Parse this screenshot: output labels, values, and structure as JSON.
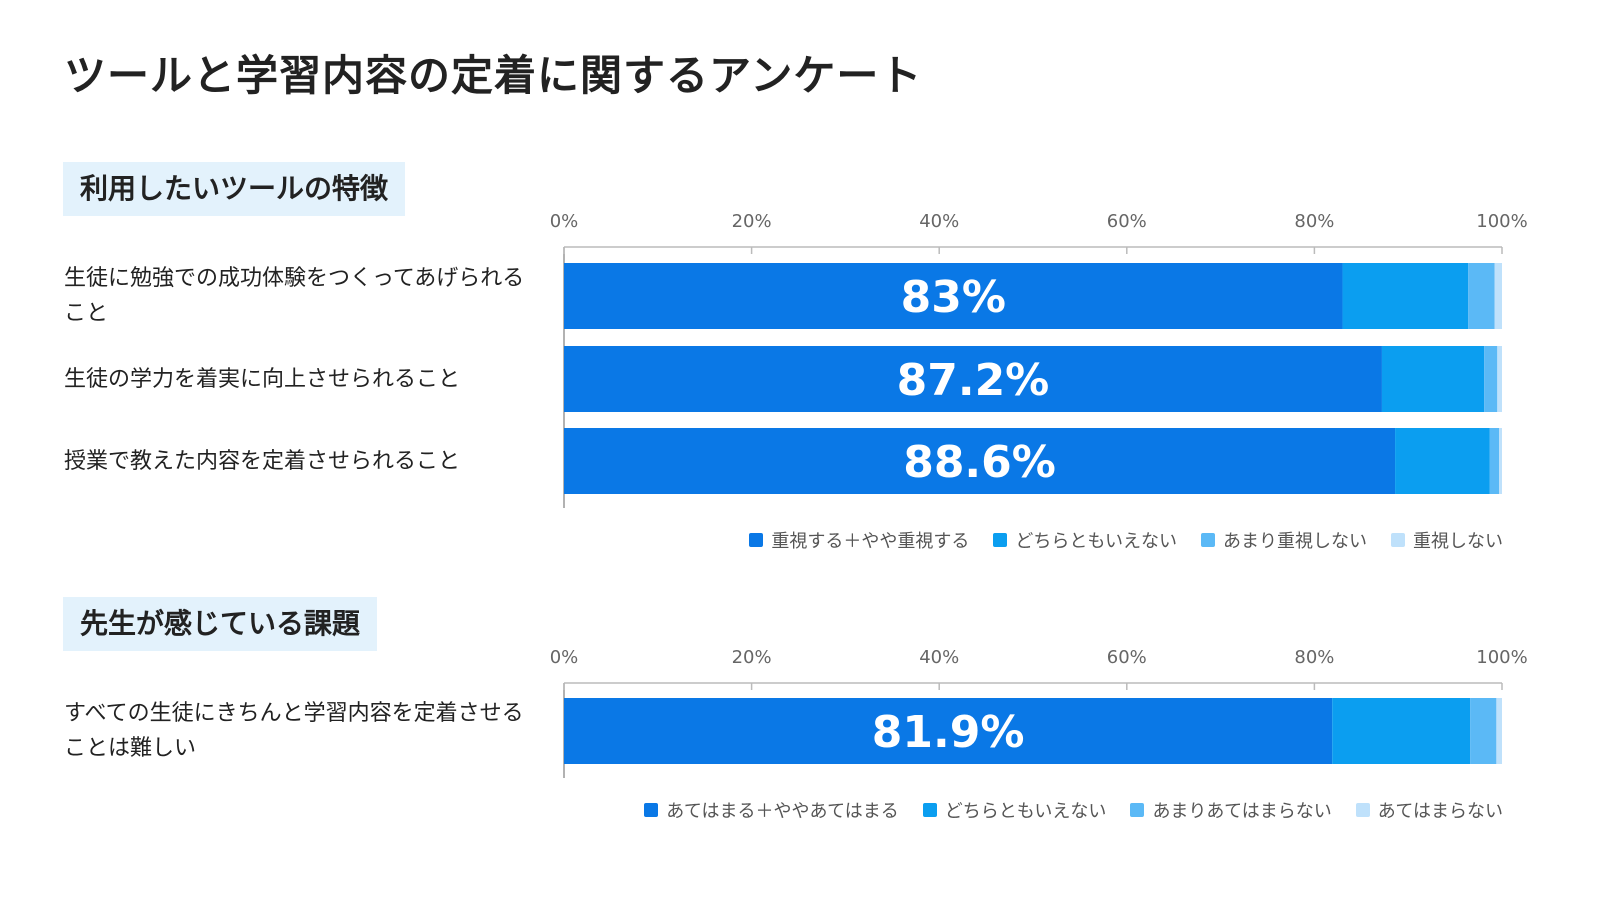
{
  "title": "ツールと学習内容の定着に関するアンケート",
  "chart_data": [
    {
      "type": "bar",
      "orientation": "horizontal",
      "stacked": true,
      "title": "利用したいツールの特徴",
      "categories": [
        "生徒に勉強での成功体験をつくってあげられること",
        "生徒の学力を着実に向上させられること",
        "授業で教えた内容を定着させられること"
      ],
      "series": [
        {
          "name": "重視する＋やや重視する",
          "color": "#0a78e6",
          "values": [
            83,
            87.2,
            88.6
          ],
          "value_labels": [
            "83%",
            "87.2%",
            "88.6%"
          ]
        },
        {
          "name": "どちらともいえない",
          "color": "#0b9ef0",
          "values": [
            13.4,
            10.9,
            10.1
          ]
        },
        {
          "name": "あまり重視しない",
          "color": "#5bb9f6",
          "values": [
            2.8,
            1.4,
            1.0
          ]
        },
        {
          "name": "重視しない",
          "color": "#bfe1fb",
          "values": [
            0.8,
            0.5,
            0.3
          ]
        }
      ],
      "xlim": [
        0,
        100
      ],
      "xticks": [
        {
          "value": 0,
          "label": "0%"
        },
        {
          "value": 20,
          "label": "20%"
        },
        {
          "value": 40,
          "label": "40%"
        },
        {
          "value": 60,
          "label": "60%"
        },
        {
          "value": 80,
          "label": "80%"
        },
        {
          "value": 100,
          "label": "100%"
        }
      ]
    },
    {
      "type": "bar",
      "orientation": "horizontal",
      "stacked": true,
      "title": "先生が感じている課題",
      "categories": [
        "すべての生徒にきちんと学習内容を定着させることは難しい"
      ],
      "series": [
        {
          "name": "あてはまる＋ややあてはまる",
          "color": "#0a78e6",
          "values": [
            81.9
          ],
          "value_labels": [
            "81.9%"
          ]
        },
        {
          "name": "どちらともいえない",
          "color": "#0b9ef0",
          "values": [
            14.7
          ]
        },
        {
          "name": "あまりあてはまらない",
          "color": "#5bb9f6",
          "values": [
            2.8
          ]
        },
        {
          "name": "あてはまらない",
          "color": "#bfe1fb",
          "values": [
            0.6
          ]
        }
      ],
      "xlim": [
        0,
        100
      ],
      "xticks": [
        {
          "value": 0,
          "label": "0%"
        },
        {
          "value": 20,
          "label": "20%"
        },
        {
          "value": 40,
          "label": "40%"
        },
        {
          "value": 60,
          "label": "60%"
        },
        {
          "value": 80,
          "label": "80%"
        },
        {
          "value": 100,
          "label": "100%"
        }
      ]
    }
  ]
}
